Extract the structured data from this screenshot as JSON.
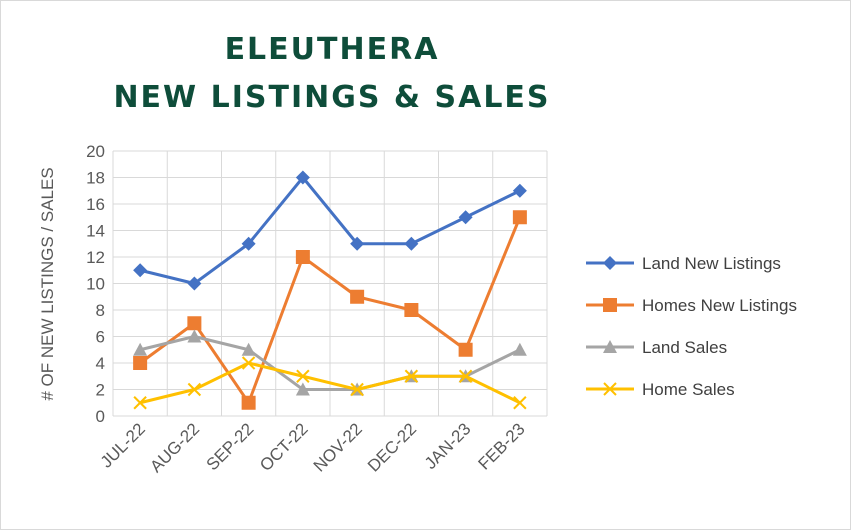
{
  "chart_data": {
    "type": "line",
    "title": "ELEUTHERA",
    "subtitle": "NEW LISTINGS & SALES",
    "xlabel": "",
    "ylabel": "# OF NEW LISTINGS / SALES",
    "categories": [
      "JUL-22",
      "AUG-22",
      "SEP-22",
      "OCT-22",
      "NOV-22",
      "DEC-22",
      "JAN-23",
      "FEB-23"
    ],
    "ylim": [
      0,
      20
    ],
    "yticks": [
      0,
      2,
      4,
      6,
      8,
      10,
      12,
      14,
      16,
      18,
      20
    ],
    "grid": true,
    "legend_position": "right",
    "series": [
      {
        "name": "Land New Listings",
        "values": [
          11,
          10,
          13,
          18,
          13,
          13,
          15,
          17
        ],
        "color": "#4472c4",
        "marker": "diamond"
      },
      {
        "name": "Homes New Listings",
        "values": [
          4,
          7,
          1,
          12,
          9,
          8,
          5,
          15
        ],
        "color": "#ed7d31",
        "marker": "square"
      },
      {
        "name": "Land Sales",
        "values": [
          5,
          6,
          5,
          2,
          2,
          3,
          3,
          5
        ],
        "color": "#a5a5a5",
        "marker": "triangle"
      },
      {
        "name": "Home Sales",
        "values": [
          1,
          2,
          4,
          3,
          2,
          3,
          3,
          1
        ],
        "color": "#ffc000",
        "marker": "x"
      }
    ]
  }
}
